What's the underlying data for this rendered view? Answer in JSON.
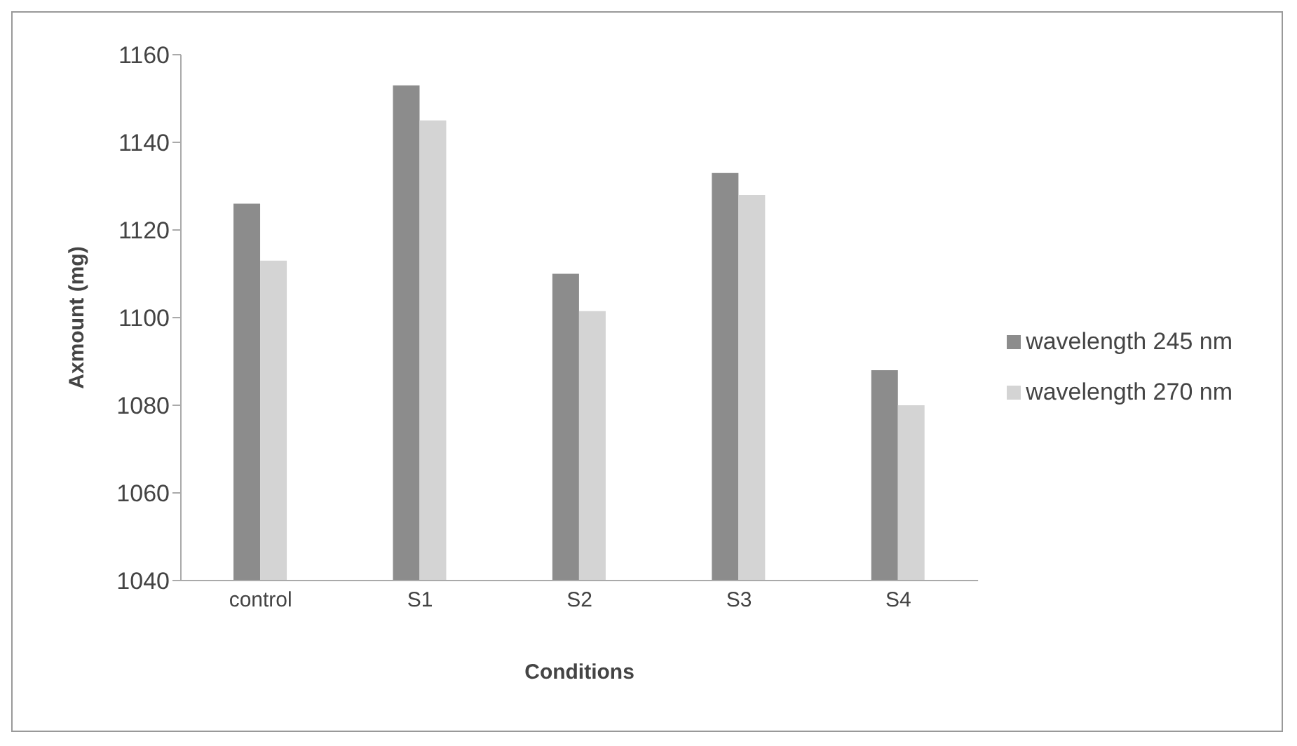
{
  "chart_data": {
    "type": "bar",
    "xlabel": "Conditions",
    "ylabel": "Axmount (mg)",
    "categories": [
      "control",
      "S1",
      "S2",
      "S3",
      "S4"
    ],
    "series": [
      {
        "name": "wavelength 245 nm",
        "color": "#8c8c8c",
        "values": [
          1126,
          1153,
          1110,
          1133,
          1088
        ]
      },
      {
        "name": "wavelength 270 nm",
        "color": "#d4d4d4",
        "values": [
          1113,
          1145,
          1101.5,
          1128,
          1080
        ]
      }
    ],
    "ylim": [
      1040,
      1160
    ],
    "yticks": [
      1040,
      1060,
      1080,
      1100,
      1120,
      1140,
      1160
    ],
    "grid": false,
    "legend": "right"
  }
}
